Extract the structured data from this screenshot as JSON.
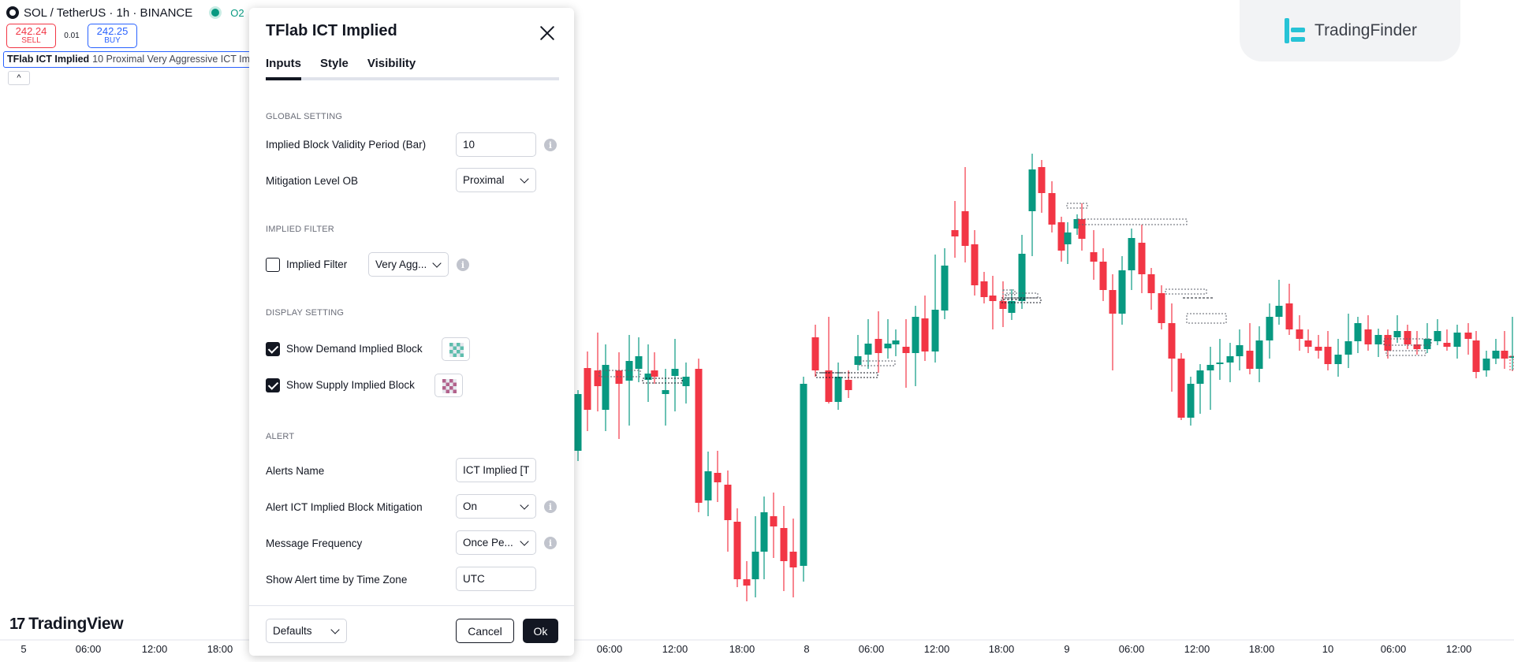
{
  "header": {
    "symbol": "SOL / TetherUS · 1h · BINANCE",
    "ohlc_prefix": "O2",
    "sell_price": "242.24",
    "sell_label": "SELL",
    "spread": "0.01",
    "buy_price": "242.25",
    "buy_label": "BUY",
    "collapse_icon": "^"
  },
  "indicator_legend": {
    "name": "TFlab ICT Implied",
    "args": "10 Proximal Very Aggressive ICT Im"
  },
  "brand": {
    "name": "TradingView",
    "mark": "17"
  },
  "watermark": {
    "text": "TradingFinder"
  },
  "x_axis": {
    "labels": [
      "5",
      "06:00",
      "12:00",
      "18:00",
      "06:00",
      "12:00",
      "18:00",
      "8",
      "06:00",
      "12:00",
      "18:00",
      "9",
      "06:00",
      "12:00",
      "18:00",
      "10",
      "06:00",
      "12:00"
    ]
  },
  "colors": {
    "up": "#089981",
    "down": "#f23645",
    "accent": "#2962ff",
    "dark": "#131722"
  },
  "dialog": {
    "title": "TFlab ICT Implied",
    "tabs": [
      {
        "label": "Inputs",
        "active": true
      },
      {
        "label": "Style",
        "active": false
      },
      {
        "label": "Visibility",
        "active": false
      }
    ],
    "sections": {
      "global": "GLOBAL SETTING",
      "filter": "IMPLIED FILTER",
      "display": "DISPLAY SETTING",
      "alert": "ALERT"
    },
    "fields": {
      "validity_label": "Implied Block Validity Period (Bar)",
      "validity_value": "10",
      "mitigation_label": "Mitigation Level OB",
      "mitigation_value": "Proximal",
      "filter_label": "Implied Filter",
      "filter_checked": false,
      "filter_value": "Very Agg...",
      "demand_label": "Show Demand Implied Block",
      "demand_checked": true,
      "demand_color": "#089981",
      "supply_label": "Show Supply Implied Block",
      "supply_checked": true,
      "supply_color": "#880e4f",
      "alerts_name_label": "Alerts Name",
      "alerts_name_value": "ICT Implied [T",
      "alert_mitigation_label": "Alert ICT Implied Block Mitigation",
      "alert_mitigation_value": "On",
      "frequency_label": "Message Frequency",
      "frequency_value": "Once Pe...",
      "timezone_label": "Show Alert time by Time Zone",
      "timezone_value": "UTC"
    },
    "footer": {
      "defaults_label": "Defaults",
      "cancel_label": "Cancel",
      "ok_label": "Ok"
    }
  }
}
